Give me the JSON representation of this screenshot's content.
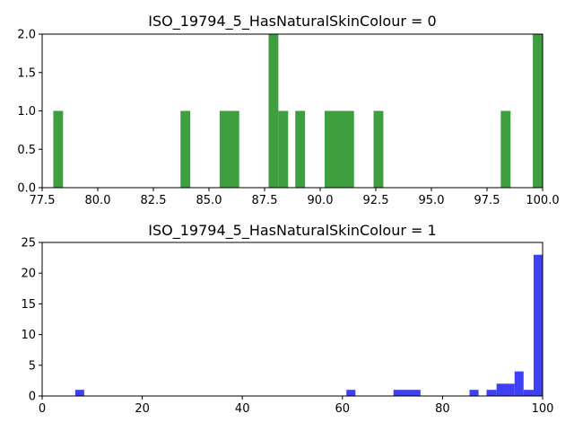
{
  "chart_data": [
    {
      "type": "bar",
      "title": "ISO_19794_5_HasNaturalSkinColour = 0",
      "xlabel": "",
      "ylabel": "",
      "xlim": [
        77.5,
        100.0
      ],
      "ylim": [
        0,
        2.0
      ],
      "x_ticks": [
        77.5,
        80.0,
        82.5,
        85.0,
        87.5,
        90.0,
        92.5,
        95.0,
        97.5,
        100.0
      ],
      "x_tick_labels": [
        "77.5",
        "80.0",
        "82.5",
        "85.0",
        "87.5",
        "90.0",
        "92.5",
        "95.0",
        "97.5",
        "100.0"
      ],
      "y_ticks": [
        0,
        0.5,
        1.0,
        1.5,
        2.0
      ],
      "y_tick_labels": [
        "0.0",
        "0.5",
        "1.0",
        "1.5",
        "2.0"
      ],
      "color": "#3f9f3f",
      "series": [
        {
          "values": [
            {
              "start": 78.0,
              "end": 78.44,
              "count": 1
            },
            {
              "start": 83.72,
              "end": 84.16,
              "count": 1
            },
            {
              "start": 85.48,
              "end": 86.36,
              "count": 1
            },
            {
              "start": 87.68,
              "end": 88.12,
              "count": 2
            },
            {
              "start": 88.12,
              "end": 88.56,
              "count": 1
            },
            {
              "start": 88.88,
              "end": 89.32,
              "count": 1
            },
            {
              "start": 90.2,
              "end": 91.52,
              "count": 1
            },
            {
              "start": 92.4,
              "end": 92.84,
              "count": 1
            },
            {
              "start": 98.12,
              "end": 98.56,
              "count": 1
            },
            {
              "start": 99.56,
              "end": 100.0,
              "count": 2
            }
          ]
        }
      ]
    },
    {
      "type": "bar",
      "title": "ISO_19794_5_HasNaturalSkinColour = 1",
      "xlabel": "",
      "ylabel": "",
      "xlim": [
        0,
        100
      ],
      "ylim": [
        0,
        25
      ],
      "x_ticks": [
        0,
        20,
        40,
        60,
        80,
        100
      ],
      "x_tick_labels": [
        "0",
        "20",
        "40",
        "60",
        "80",
        "100"
      ],
      "y_ticks": [
        0,
        5,
        10,
        15,
        20,
        25
      ],
      "y_tick_labels": [
        "0",
        "5",
        "10",
        "15",
        "20",
        "25"
      ],
      "color": "#3f3ff5",
      "series": [
        {
          "values": [
            {
              "start": 6.6,
              "end": 8.4,
              "count": 1
            },
            {
              "start": 60.8,
              "end": 62.6,
              "count": 1
            },
            {
              "start": 70.2,
              "end": 75.6,
              "count": 1
            },
            {
              "start": 85.4,
              "end": 87.2,
              "count": 1
            },
            {
              "start": 88.8,
              "end": 90.8,
              "count": 1
            },
            {
              "start": 90.8,
              "end": 94.4,
              "count": 2
            },
            {
              "start": 94.4,
              "end": 96.2,
              "count": 4
            },
            {
              "start": 96.2,
              "end": 98.2,
              "count": 1
            },
            {
              "start": 98.2,
              "end": 100.0,
              "count": 23
            }
          ]
        }
      ]
    }
  ]
}
